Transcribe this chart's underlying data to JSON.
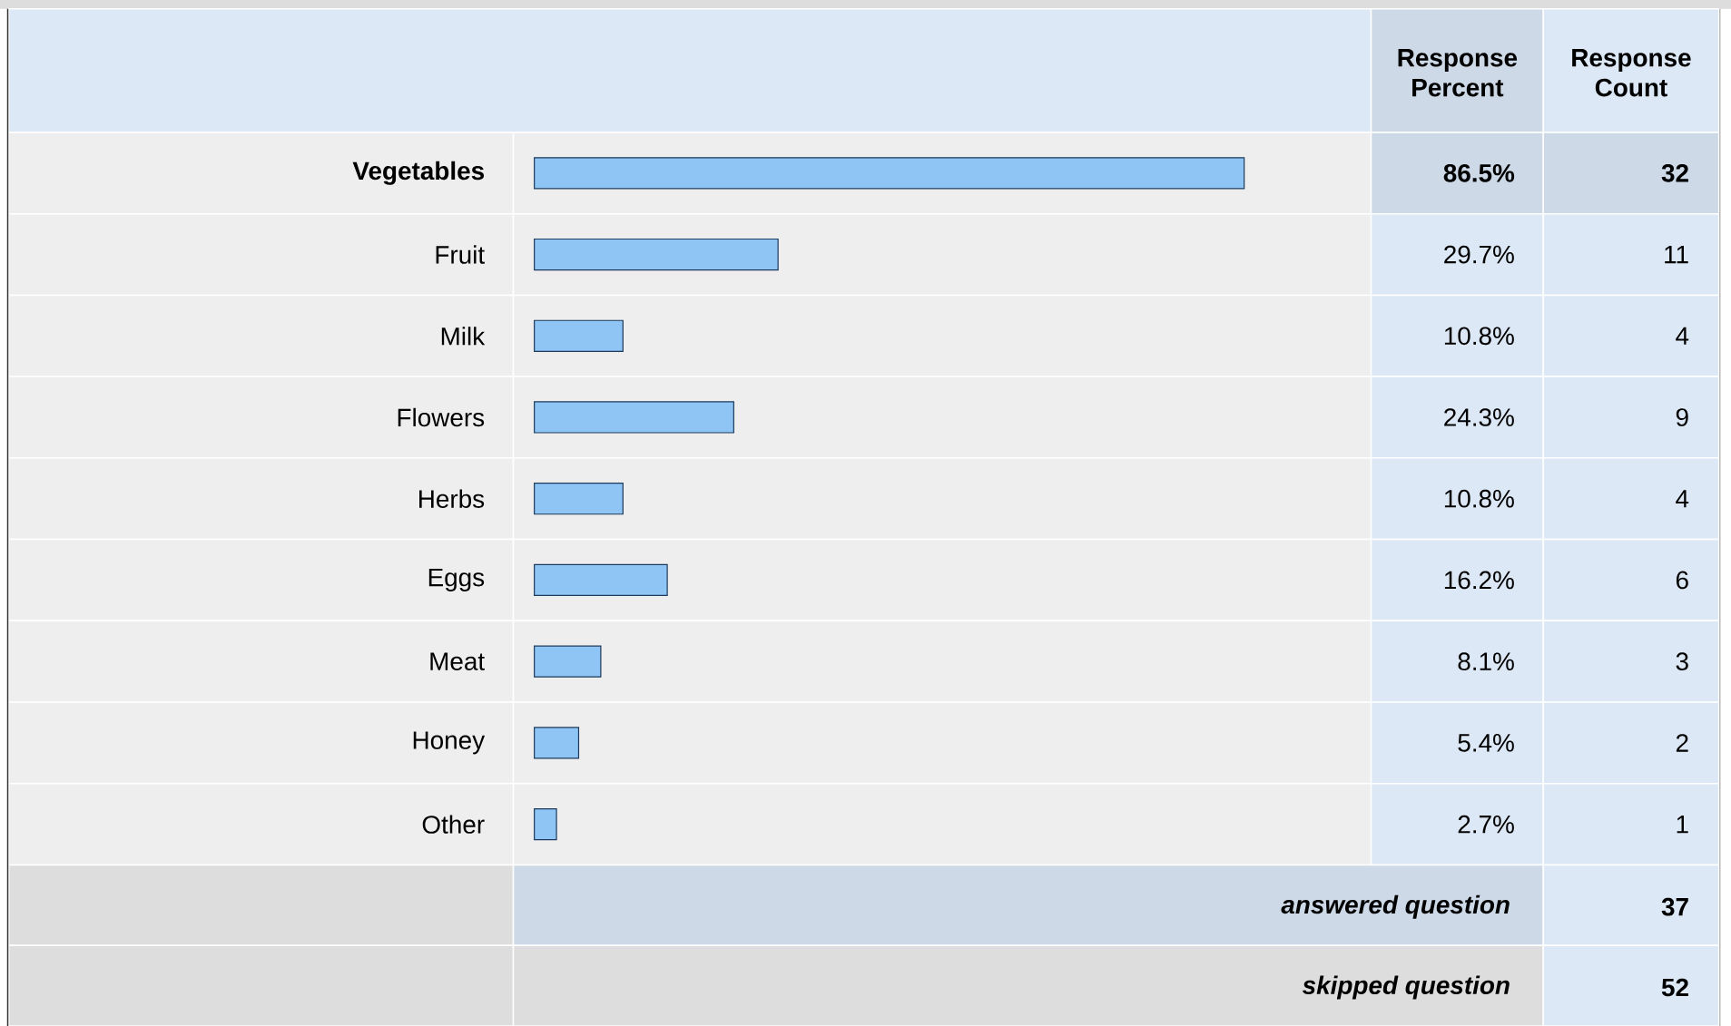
{
  "chart_data": {
    "type": "bar",
    "orientation": "horizontal",
    "categories": [
      "Vegetables",
      "Fruit",
      "Milk",
      "Flowers",
      "Herbs",
      "Eggs",
      "Meat",
      "Honey",
      "Other"
    ],
    "values": [
      86.5,
      29.7,
      10.8,
      24.3,
      10.8,
      16.2,
      8.1,
      5.4,
      2.7
    ],
    "value_labels": [
      "86.5%",
      "29.7%",
      "10.8%",
      "24.3%",
      "10.8%",
      "16.2%",
      "8.1%",
      "5.4%",
      "2.7%"
    ],
    "color": "#8ec5f4",
    "annotations": [
      "Response Percent",
      "Response Count",
      "answered question",
      "37",
      "skipped question",
      "52",
      "32",
      "11",
      "4",
      "9",
      "4",
      "6",
      "3",
      "2",
      "1"
    ]
  }
}
